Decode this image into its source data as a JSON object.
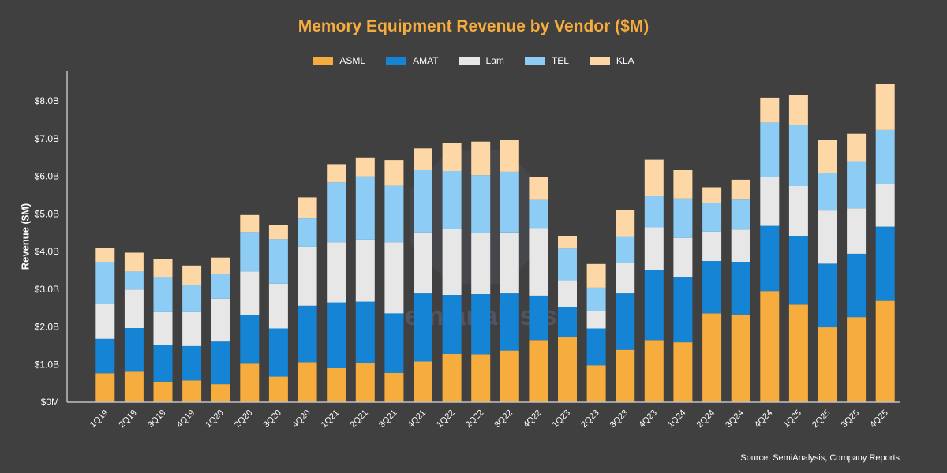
{
  "chart_data": {
    "type": "bar",
    "stacked": true,
    "title": "Memory Equipment Revenue by Vendor ($M)",
    "xlabel": "",
    "ylabel": "Revenue ($M)",
    "ylim": [
      0,
      8800
    ],
    "ytick_values": [
      0,
      1000,
      2000,
      3000,
      4000,
      5000,
      6000,
      7000,
      8000
    ],
    "ytick_labels": [
      "$0M",
      "$1.0B",
      "$2.0B",
      "$3.0B",
      "$4.0B",
      "$5.0B",
      "$6.0B",
      "$7.0B",
      "$8.0B"
    ],
    "categories": [
      "1Q19",
      "2Q19",
      "3Q19",
      "4Q19",
      "1Q20",
      "2Q20",
      "3Q20",
      "4Q20",
      "1Q21",
      "2Q21",
      "3Q21",
      "4Q21",
      "1Q22",
      "2Q22",
      "3Q22",
      "4Q22",
      "1Q23",
      "2Q23",
      "3Q23",
      "4Q23",
      "1Q24",
      "2Q24",
      "3Q24",
      "4Q24",
      "1Q25",
      "2Q25",
      "3Q25",
      "4Q25"
    ],
    "legend_position": "top-center",
    "grid": false,
    "series": [
      {
        "name": "ASML",
        "color": "#F7AD3E",
        "values": [
          770,
          810,
          550,
          580,
          480,
          1020,
          680,
          1060,
          900,
          1030,
          780,
          1080,
          1280,
          1270,
          1370,
          1650,
          1720,
          980,
          1390,
          1650,
          1590,
          2360,
          2330,
          2950,
          2590,
          1990,
          2260,
          2690
        ]
      },
      {
        "name": "AMAT",
        "color": "#1584D4",
        "values": [
          910,
          1160,
          970,
          910,
          1130,
          1300,
          1280,
          1500,
          1750,
          1640,
          1580,
          1810,
          1570,
          1600,
          1520,
          1180,
          810,
          980,
          1500,
          1870,
          1720,
          1390,
          1400,
          1730,
          1830,
          1690,
          1680,
          1970
        ]
      },
      {
        "name": "Lam",
        "color": "#E7E7E7",
        "values": [
          920,
          1020,
          870,
          900,
          1140,
          1150,
          1190,
          1570,
          1600,
          1650,
          1890,
          1620,
          1760,
          1620,
          1620,
          1790,
          710,
          460,
          800,
          1120,
          1050,
          780,
          850,
          1310,
          1320,
          1410,
          1210,
          1140
        ]
      },
      {
        "name": "TEL",
        "color": "#8DCDF5",
        "values": [
          1130,
          480,
          920,
          730,
          660,
          1050,
          1180,
          750,
          1590,
          1680,
          1500,
          1650,
          1530,
          1540,
          1610,
          750,
          840,
          620,
          700,
          840,
          1050,
          770,
          800,
          1440,
          1620,
          990,
          1250,
          1430
        ]
      },
      {
        "name": "KLA",
        "color": "#FDD8A6",
        "values": [
          360,
          500,
          500,
          510,
          430,
          450,
          380,
          560,
          480,
          500,
          680,
          580,
          750,
          890,
          840,
          620,
          320,
          630,
          710,
          960,
          750,
          410,
          530,
          660,
          790,
          890,
          730,
          1220
        ]
      }
    ],
    "source": "Source: SemiAnalysis, Company Reports",
    "watermark": "semianalysis"
  }
}
